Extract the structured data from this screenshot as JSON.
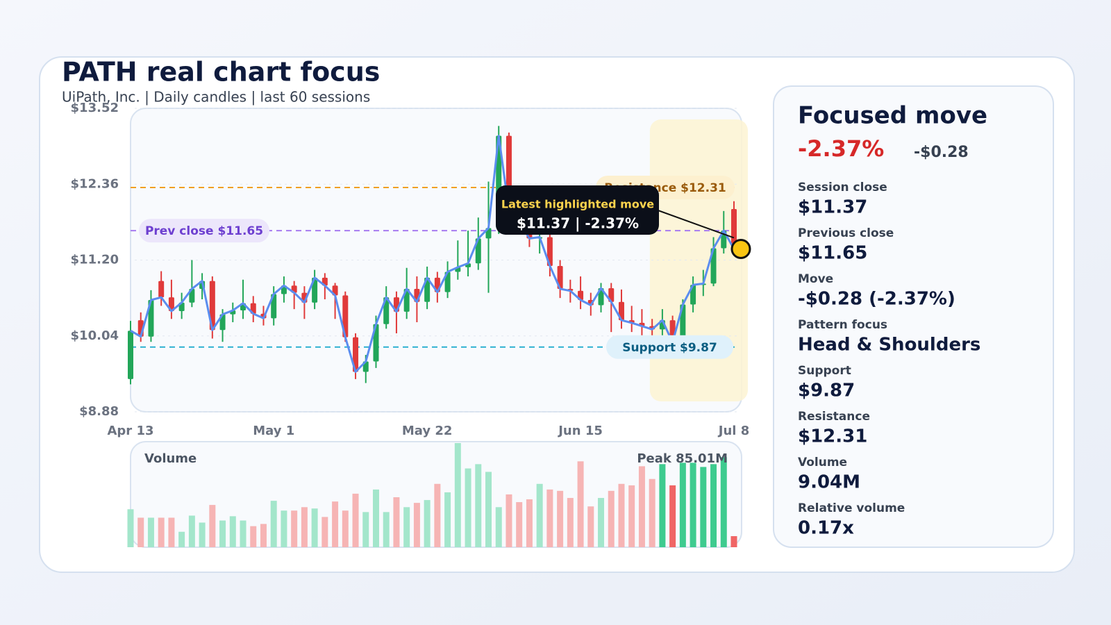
{
  "title": "PATH real chart focus",
  "subtitle": "UiPath, Inc. | Daily candles | last 60 sessions",
  "chart_data": {
    "type": "candlestick",
    "categories": [
      "Apr 13",
      null,
      null,
      null,
      null,
      null,
      null,
      null,
      null,
      null,
      null,
      null,
      null,
      null,
      "May 1",
      null,
      null,
      null,
      null,
      null,
      null,
      null,
      null,
      null,
      null,
      null,
      null,
      null,
      null,
      "May 22",
      null,
      null,
      null,
      null,
      null,
      null,
      null,
      null,
      null,
      null,
      null,
      null,
      null,
      null,
      "Jun 15",
      null,
      null,
      null,
      null,
      null,
      null,
      null,
      null,
      null,
      null,
      null,
      null,
      null,
      null,
      "Jul 8"
    ],
    "open": [
      9.38,
      10.28,
      10.03,
      10.88,
      10.63,
      10.42,
      10.55,
      10.76,
      10.88,
      10.13,
      10.37,
      10.43,
      10.54,
      10.38,
      10.31,
      10.68,
      10.81,
      10.7,
      10.55,
      10.93,
      10.81,
      10.66,
      10.02,
      9.49,
      9.65,
      10.22,
      10.63,
      10.41,
      10.76,
      10.56,
      10.93,
      10.71,
      11.02,
      11.09,
      11.15,
      11.53,
      11.69,
      13.1,
      11.96,
      11.8,
      11.53,
      11.55,
      11.11,
      10.76,
      10.73,
      10.59,
      10.51,
      10.77,
      10.56,
      10.28,
      10.24,
      10.19,
      10.14,
      10.28,
      9.94,
      10.52,
      10.82,
      10.84,
      11.38,
      11.98
    ],
    "high": [
      10.27,
      10.4,
      10.74,
      11.03,
      10.9,
      10.7,
      11.2,
      11.0,
      10.95,
      10.45,
      10.55,
      10.9,
      10.65,
      10.5,
      10.8,
      10.95,
      10.88,
      10.8,
      11.05,
      11.0,
      10.85,
      10.72,
      10.08,
      9.75,
      10.35,
      10.8,
      10.72,
      11.08,
      10.95,
      11.1,
      11.02,
      11.18,
      11.5,
      11.65,
      11.85,
      12.4,
      13.25,
      13.15,
      12.15,
      11.9,
      11.7,
      11.62,
      11.2,
      10.9,
      10.95,
      10.7,
      10.85,
      10.85,
      10.75,
      10.5,
      10.45,
      10.3,
      10.45,
      10.35,
      10.6,
      10.95,
      11.05,
      11.55,
      11.95,
      12.1
    ],
    "low": [
      9.3,
      9.95,
      9.95,
      10.5,
      10.3,
      10.3,
      10.48,
      10.6,
      10.0,
      9.95,
      10.25,
      10.3,
      10.25,
      10.2,
      10.2,
      10.55,
      10.45,
      10.3,
      10.45,
      10.6,
      10.3,
      9.95,
      9.38,
      9.32,
      9.55,
      10.15,
      10.08,
      10.3,
      10.25,
      10.45,
      10.55,
      10.62,
      10.9,
      10.95,
      11.05,
      10.7,
      11.6,
      11.85,
      11.65,
      11.4,
      11.3,
      10.95,
      10.62,
      10.55,
      10.45,
      10.35,
      10.4,
      10.1,
      10.15,
      10.1,
      9.95,
      10.02,
      9.9,
      9.85,
      9.88,
      10.4,
      10.65,
      10.8,
      11.3,
      11.3
    ],
    "close": [
      10.12,
      10.03,
      10.59,
      10.63,
      10.42,
      10.55,
      10.76,
      10.88,
      10.13,
      10.37,
      10.43,
      10.54,
      10.38,
      10.31,
      10.68,
      10.81,
      10.7,
      10.55,
      10.93,
      10.81,
      10.66,
      10.02,
      9.49,
      9.65,
      10.22,
      10.63,
      10.41,
      10.76,
      10.56,
      10.93,
      10.71,
      11.02,
      11.09,
      11.15,
      11.53,
      11.69,
      13.1,
      11.96,
      11.8,
      11.53,
      11.55,
      11.11,
      10.76,
      10.73,
      10.59,
      10.51,
      10.77,
      10.56,
      10.28,
      10.24,
      10.19,
      10.14,
      10.28,
      9.94,
      10.52,
      10.82,
      10.84,
      11.38,
      11.65,
      11.37
    ],
    "ylim": [
      8.88,
      13.52
    ],
    "yticks": [
      {
        "value": 8.88,
        "label": "$8.88"
      },
      {
        "value": 10.04,
        "label": "$10.04"
      },
      {
        "value": 11.2,
        "label": "$11.20"
      },
      {
        "value": 12.36,
        "label": "$12.36"
      },
      {
        "value": 13.52,
        "label": "$13.52"
      }
    ],
    "grid": true,
    "up_color": "#22a659",
    "down_color": "#e03a3a",
    "line_color": "#5b8def",
    "levels": [
      {
        "label": "Resistance $12.31",
        "value": 12.31,
        "color": "#f0a020"
      },
      {
        "label": "Prev close $11.65",
        "value": 11.65,
        "color": "#a77bf0"
      },
      {
        "label": "Support $9.87",
        "value": 9.87,
        "color": "#2bb0d0"
      }
    ],
    "highlight": {
      "from": 52,
      "to": 59
    },
    "tooltip": {
      "title": "Latest highlighted move",
      "text": "$11.37 | -2.37%"
    },
    "volume": {
      "label": "Volume",
      "peak_label": "Peak 85.01M",
      "values": [
        31.0,
        24.1,
        24.1,
        24.1,
        24.1,
        12.6,
        25.8,
        20.1,
        34.5,
        21.8,
        25.3,
        21.8,
        17.2,
        19.0,
        37.9,
        29.9,
        29.9,
        32.7,
        31.6,
        24.7,
        37.3,
        29.9,
        43.7,
        28.7,
        47.1,
        28.7,
        40.8,
        32.7,
        36.2,
        38.5,
        51.7,
        44.8,
        85.01,
        64.3,
        67.8,
        61.5,
        32.7,
        43.1,
        36.8,
        39.1,
        51.7,
        47.1,
        46.0,
        40.2,
        70.1,
        33.3,
        40.2,
        46.0,
        51.7,
        50.5,
        66.1,
        55.7,
        67.8,
        50.5,
        68.9,
        68.9,
        65.5,
        67.8,
        73.5,
        9.04
      ]
    }
  },
  "panel": {
    "title": "Focused move",
    "change_pct": "-2.37%",
    "change_abs": "-$0.28",
    "rows": [
      {
        "label": "Session close",
        "value": "$11.37"
      },
      {
        "label": "Previous close",
        "value": "$11.65"
      },
      {
        "label": "Move",
        "value": "-$0.28 (-2.37%)"
      },
      {
        "label": "Pattern focus",
        "value": "Head & Shoulders"
      },
      {
        "label": "Support",
        "value": "$9.87"
      },
      {
        "label": "Resistance",
        "value": "$12.31"
      },
      {
        "label": "Volume",
        "value": "9.04M"
      },
      {
        "label": "Relative volume",
        "value": "0.17x"
      }
    ]
  }
}
